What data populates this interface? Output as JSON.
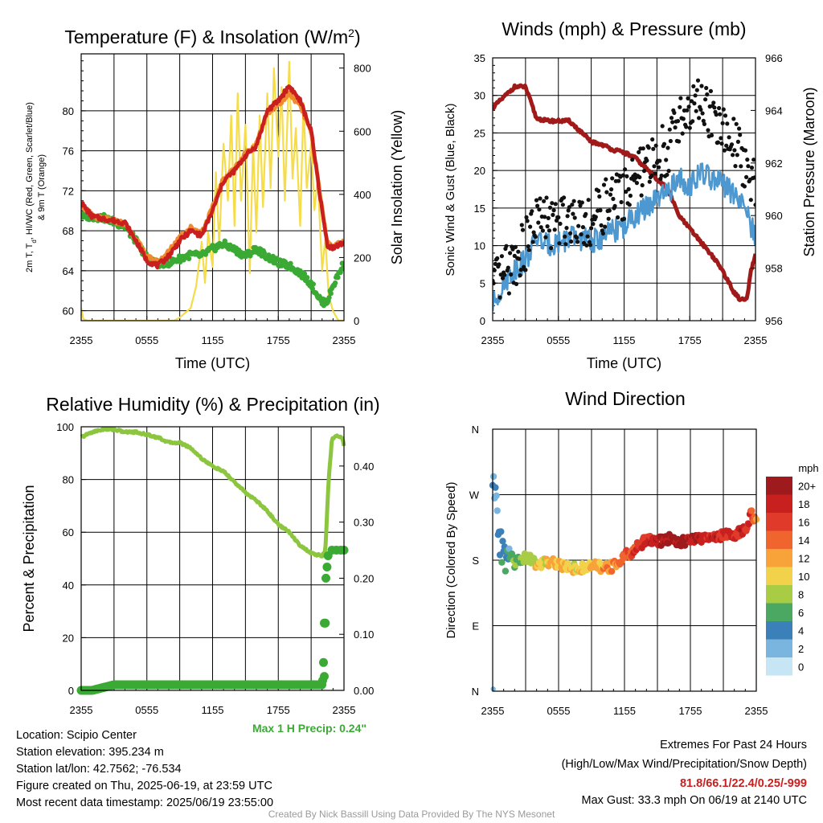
{
  "panels": {
    "temp": {
      "title": "Temperature (F) & Insolation (W/m",
      "title_sup": "2",
      "title_end": ")",
      "ylabel_lines": [
        "2m T, T",
        "d",
        ", HI/WC (Red, Green, Scarlet/Blue)",
        "& 9m T (Orange)"
      ],
      "y2label": "Solar Insolation (Yellow)",
      "xlabel": "Time (UTC)"
    },
    "wind": {
      "title": "Winds (mph) & Pressure (mb)",
      "ylabel": "Sonic Wind & Gust (Blue, Black)",
      "y2label": "Station Pressure (Maroon)",
      "xlabel": "Time (UTC)"
    },
    "rh": {
      "title": "Relative Humidity (%) & Precipitation (in)",
      "ylabel": "Percent & Precipitation",
      "max_precip": "Max 1 H Precip: 0.24\""
    },
    "wdir": {
      "title": "Wind Direction",
      "ylabel": "Direction (Colored By Speed)",
      "colorbar_title": "mph",
      "colorbar_labels": [
        "20+",
        "18",
        "16",
        "14",
        "12",
        "10",
        "8",
        "6",
        "4",
        "2",
        "0"
      ],
      "colorbar_colors": [
        "#9e1a1d",
        "#c8201f",
        "#e03a2a",
        "#f0642e",
        "#f8a33a",
        "#f2d24a",
        "#a8cd45",
        "#4aa862",
        "#3b80b8",
        "#7ab5e0",
        "#c6e6f6"
      ]
    }
  },
  "station": {
    "location": "Location: Scipio Center",
    "elevation": "Station elevation: 395.234 m",
    "latlon": "Station lat/lon: 42.7562; -76.534",
    "created": "Figure created on Thu, 2025-06-19, at 23:59 UTC",
    "recent": "Most recent data timestamp: 2025/06/19 23:55:00"
  },
  "extremes": {
    "title": "Extremes For Past 24 Hours",
    "subtitle": "(High/Low/Max Wind/Precipitation/Snow Depth)",
    "values": "81.8/66.1/22.4/0.25/-999",
    "max_gust": "Max Gust: 33.3 mph On 06/19 at 2140 UTC"
  },
  "credit": "Created By Nick Bassill Using Data Provided By The NYS Mesonet",
  "chart_data": [
    {
      "type": "line",
      "title": "Temperature (F) & Insolation (W/m2)",
      "xlabel": "Time (UTC)",
      "ylabel": "2m T, Td, HI/WC (Red, Green, Scarlet/Blue) & 9m T (Orange)",
      "y2label": "Solar Insolation (Yellow)",
      "x_ticks": [
        "2355",
        "0555",
        "1155",
        "1755",
        "2355"
      ],
      "x_hours": [
        0,
        3,
        6,
        9,
        12,
        15,
        18,
        21,
        24
      ],
      "ylim": [
        59,
        85.7
      ],
      "yticks": [
        60,
        64,
        68,
        72,
        76,
        80
      ],
      "y2lim": [
        0,
        845
      ],
      "y2ticks": [
        0,
        200,
        400,
        600,
        800
      ],
      "series": [
        {
          "name": "2m T",
          "color": "#c9201f",
          "axis": "left",
          "x": [
            0,
            1,
            2,
            3,
            4,
            5,
            6,
            7,
            8,
            9,
            10,
            11,
            12,
            13,
            14,
            15,
            16,
            17,
            18,
            19,
            20,
            21,
            22,
            22.5,
            23,
            24
          ],
          "values": [
            70.8,
            69.4,
            69.2,
            69,
            68.8,
            67,
            65,
            64.5,
            65.5,
            67,
            68,
            67.5,
            70,
            73,
            74,
            75.5,
            76.5,
            80,
            81,
            82.5,
            81,
            78,
            70,
            66.5,
            66.3,
            66.8
          ]
        },
        {
          "name": "Td",
          "color": "#3aaa35",
          "axis": "left",
          "x": [
            0,
            1,
            2,
            3,
            4,
            5,
            6,
            7,
            8,
            9,
            10,
            11,
            12,
            13,
            14,
            15,
            16,
            17,
            18,
            19,
            20,
            21,
            22,
            22.5,
            23,
            24
          ],
          "values": [
            69.5,
            69.4,
            69.3,
            68.9,
            68.4,
            67,
            65.3,
            64.7,
            64.8,
            65.2,
            65.6,
            65.5,
            66.2,
            66.7,
            66.1,
            65.5,
            66.2,
            65.4,
            64.8,
            64.5,
            63.8,
            62.7,
            60.8,
            61,
            62.5,
            64.8
          ]
        },
        {
          "name": "9m T",
          "color": "#f08a2e",
          "axis": "left",
          "x": [
            0,
            1,
            2,
            3,
            4,
            5,
            6,
            7,
            8,
            9,
            10,
            11,
            12,
            13,
            14,
            15,
            16,
            17,
            18,
            19,
            20,
            21,
            22,
            22.5,
            23,
            24
          ],
          "values": [
            70.6,
            69.5,
            69.2,
            69,
            68.7,
            67.2,
            65.4,
            64.8,
            65.9,
            67.4,
            68.3,
            67.8,
            70.3,
            73.2,
            74.2,
            75.7,
            76.7,
            79.8,
            80.7,
            81.7,
            80.5,
            77.8,
            70.2,
            66.7,
            66.4,
            66.9
          ]
        },
        {
          "name": "Solar",
          "color": "#f5dc4a",
          "axis": "right",
          "x": [
            0,
            0.2,
            0.6,
            2,
            4,
            7,
            8.5,
            9,
            10,
            10.5,
            11,
            11.3,
            11.6,
            12,
            12.3,
            12.6,
            13,
            13.4,
            13.7,
            14,
            14.3,
            14.6,
            15,
            15.4,
            15.7,
            16,
            16.3,
            16.6,
            17,
            17.3,
            17.6,
            18,
            18.3,
            18.6,
            19,
            19.3,
            19.6,
            20,
            20.3,
            20.6,
            21,
            21.3,
            21.6,
            22,
            22.3,
            22.6,
            23,
            23.5,
            24
          ],
          "values": [
            40,
            5,
            0,
            0,
            0,
            0,
            0,
            10,
            40,
            110,
            250,
            120,
            280,
            170,
            470,
            240,
            560,
            380,
            650,
            300,
            720,
            380,
            620,
            150,
            560,
            280,
            650,
            360,
            720,
            420,
            800,
            520,
            740,
            380,
            820,
            450,
            610,
            300,
            690,
            420,
            560,
            350,
            450,
            160,
            260,
            80,
            30,
            0,
            0
          ]
        }
      ]
    },
    {
      "type": "line",
      "title": "Winds (mph) & Pressure (mb)",
      "xlabel": "Time (UTC)",
      "ylabel": "Sonic Wind & Gust (Blue, Black)",
      "y2label": "Station Pressure (Maroon)",
      "x_ticks": [
        "2355",
        "0555",
        "1155",
        "1755",
        "2355"
      ],
      "ylim": [
        0,
        35
      ],
      "yticks": [
        0,
        5,
        10,
        15,
        20,
        25,
        30,
        35
      ],
      "y2lim": [
        956,
        966
      ],
      "y2ticks": [
        956,
        958,
        960,
        962,
        964,
        966
      ],
      "series": [
        {
          "name": "Sonic Wind",
          "color": "#4d98d0",
          "axis": "left",
          "x": [
            0,
            1,
            2,
            3,
            4,
            5,
            6,
            7,
            8,
            9,
            10,
            11,
            12,
            13,
            14,
            15,
            16,
            17,
            18,
            19,
            20,
            21,
            22,
            23,
            24
          ],
          "values": [
            2,
            5,
            7,
            8,
            11,
            10,
            10.5,
            11,
            11,
            10.5,
            11,
            12,
            12.5,
            14,
            15,
            16,
            17,
            19,
            18,
            19.5,
            19,
            18,
            17,
            15,
            11
          ]
        },
        {
          "name": "Gust",
          "color": "#111111",
          "axis": "left",
          "x": [
            0,
            1,
            2,
            3,
            4,
            5,
            6,
            7,
            8,
            9,
            10,
            11,
            12,
            13,
            14,
            15,
            16,
            17,
            18,
            19,
            20,
            21,
            22,
            23,
            24
          ],
          "values": [
            4,
            6,
            8,
            10,
            13.5,
            13,
            13,
            14,
            14,
            13,
            15,
            16,
            17,
            19,
            20,
            22,
            23,
            27,
            28,
            29,
            27,
            25,
            24,
            21,
            18
          ]
        },
        {
          "name": "Pressure",
          "color": "#a01a1a",
          "axis": "right",
          "x": [
            0,
            1,
            2,
            3,
            4,
            5,
            6,
            7,
            8,
            9,
            10,
            11,
            12,
            13,
            14,
            15,
            16,
            17,
            18,
            19,
            20,
            21,
            22,
            22.6,
            23.2,
            23.6,
            24
          ],
          "values": [
            964.1,
            964.5,
            964.9,
            964.9,
            963.7,
            963.6,
            963.6,
            963.6,
            963.2,
            962.8,
            962.7,
            962.5,
            962.4,
            962.2,
            961.8,
            961.4,
            961,
            960,
            959.5,
            959,
            958.5,
            957.9,
            957.1,
            956.8,
            956.8,
            957.9,
            958.5
          ]
        }
      ]
    },
    {
      "type": "line",
      "title": "Relative Humidity (%) & Precipitation (in)",
      "ylabel": "Percent & Precipitation",
      "x_ticks": [
        "2355",
        "0555",
        "1155",
        "1755",
        "2355"
      ],
      "ylim": [
        0,
        100
      ],
      "yticks": [
        0,
        20,
        40,
        60,
        80,
        100
      ],
      "y2lim": [
        0,
        0.47
      ],
      "y2ticks": [
        0.0,
        0.1,
        0.2,
        0.3,
        0.4
      ],
      "series": [
        {
          "name": "RH",
          "color": "#8cc63f",
          "axis": "left",
          "x": [
            0,
            1,
            2,
            3,
            4,
            5,
            6,
            7,
            8,
            9,
            10,
            11,
            12,
            13,
            14,
            15,
            16,
            17,
            18,
            19,
            20,
            21,
            22,
            22.3,
            22.6,
            22.9,
            23.3,
            23.8,
            24
          ],
          "values": [
            96,
            98,
            99,
            99,
            98,
            98,
            97,
            96,
            94,
            94,
            92,
            88,
            85,
            83,
            79,
            75,
            72,
            68,
            63,
            60,
            55,
            52,
            51,
            53,
            80,
            95,
            97,
            96,
            93
          ]
        },
        {
          "name": "Precip",
          "color": "#3aaa35",
          "axis": "right",
          "x": [
            0,
            1,
            3,
            4,
            6,
            10,
            14,
            18,
            21.5,
            22,
            22.1,
            22.2,
            22.3,
            22.35,
            22.45,
            22.6,
            23,
            23.5,
            24
          ],
          "values": [
            0,
            0,
            0.01,
            0.01,
            0.01,
            0.01,
            0.01,
            0.01,
            0.01,
            0.01,
            0.025,
            0.12,
            0.2,
            0.22,
            0.24,
            0.25,
            0.25,
            0.25,
            0.25
          ]
        }
      ]
    },
    {
      "type": "scatter",
      "title": "Wind Direction",
      "ylabel": "Direction (Colored By Speed)",
      "x_ticks": [
        "2355",
        "0555",
        "1155",
        "1755",
        "2355"
      ],
      "y_ticks": [
        "N",
        "E",
        "S",
        "W",
        "N"
      ],
      "ylim": [
        0,
        360
      ],
      "colorbar": {
        "title": "mph",
        "labels": [
          "0",
          "2",
          "4",
          "6",
          "8",
          "10",
          "12",
          "14",
          "16",
          "18",
          "20+"
        ]
      },
      "series": [
        {
          "name": "Direction",
          "x": [
            0,
            0.15,
            0.3,
            0.5,
            0.7,
            1,
            1.5,
            2,
            2.5,
            3,
            3.5,
            4,
            5,
            6,
            7,
            8,
            9,
            10,
            11,
            12,
            13,
            14,
            15,
            16,
            17,
            18,
            19,
            20,
            21,
            22,
            23,
            23.5,
            24
          ],
          "values": [
            290,
            255,
            270,
            240,
            200,
            180,
            190,
            175,
            180,
            185,
            180,
            175,
            178,
            175,
            170,
            168,
            172,
            170,
            172,
            185,
            195,
            210,
            205,
            210,
            205,
            208,
            210,
            212,
            215,
            215,
            220,
            245,
            230
          ],
          "speeds": [
            3,
            2,
            4,
            3,
            4,
            5,
            4,
            6,
            7,
            8,
            9,
            10,
            10,
            11,
            10,
            10,
            11,
            12,
            13,
            14,
            16,
            17,
            19,
            20,
            20,
            19,
            18,
            18,
            17,
            17,
            18,
            16,
            13
          ]
        }
      ]
    }
  ]
}
